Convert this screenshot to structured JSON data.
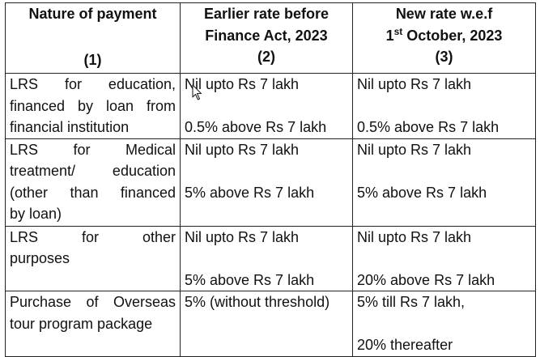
{
  "header": {
    "col1_title": "Nature of payment",
    "col1_num": "(1)",
    "col2_title_line1": "Earlier rate before",
    "col2_title_line2": "Finance Act, 2023",
    "col2_num": "(2)",
    "col3_title_line1": "New rate w.e.f",
    "col3_title_day": "1",
    "col3_title_sup": "st",
    "col3_title_rest": " October, 2023",
    "col3_num": "(3)"
  },
  "rows": [
    {
      "nature": [
        "LRS for education,",
        "financed by loan from",
        "financial institution"
      ],
      "earlier": [
        "Nil upto Rs 7 lakh",
        "0.5% above Rs 7 lakh"
      ],
      "new": [
        "Nil upto Rs 7 lakh",
        "0.5% above Rs 7 lakh"
      ]
    },
    {
      "nature": [
        "LRS for Medical",
        "treatment/ education",
        "(other than financed",
        "by loan)"
      ],
      "earlier": [
        "Nil upto Rs 7 lakh",
        "5% above Rs 7 lakh"
      ],
      "new": [
        "Nil upto Rs 7 lakh",
        "5% above Rs 7 lakh"
      ]
    },
    {
      "nature": [
        "LRS for other",
        "purposes"
      ],
      "earlier": [
        "Nil upto Rs 7 lakh",
        "5% above Rs 7 lakh"
      ],
      "new": [
        "Nil upto Rs 7 lakh",
        "20% above Rs 7 lakh"
      ]
    },
    {
      "nature": [
        "Purchase of Overseas",
        "tour program package"
      ],
      "earlier": [
        "5% (without threshold)"
      ],
      "new": [
        "5% till Rs 7 lakh,",
        "20% thereafter"
      ]
    }
  ],
  "icons": {
    "cursor": "mouse-pointer-icon"
  }
}
